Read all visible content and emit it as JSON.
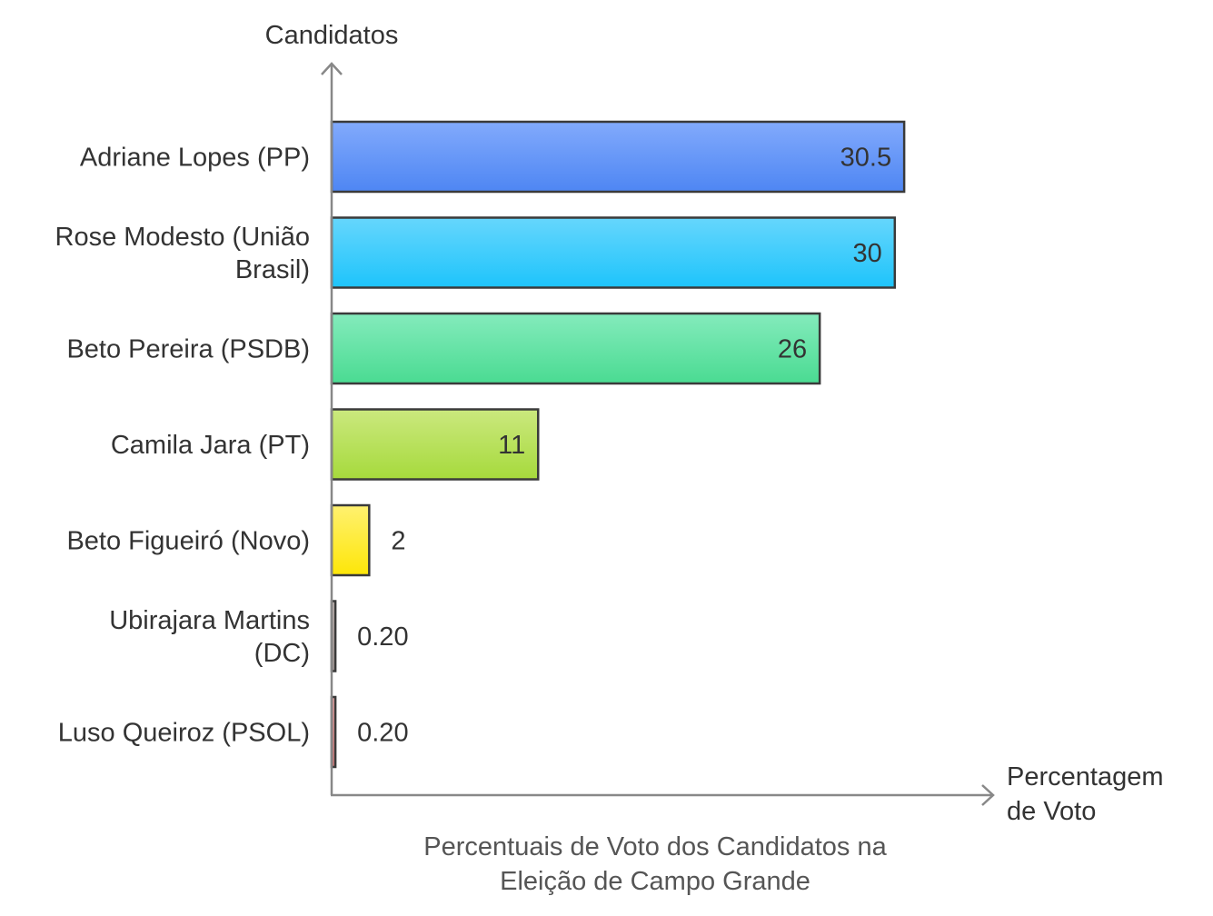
{
  "chart_data": {
    "type": "bar",
    "orientation": "horizontal",
    "categories": [
      "Adriane Lopes (PP)",
      "Rose Modesto (União Brasil)",
      "Beto Pereira (PSDB)",
      "Camila Jara (PT)",
      "Beto Figueiró (Novo)",
      "Ubirajara Martins (DC)",
      "Luso Queiroz (PSOL)"
    ],
    "values": [
      30.5,
      30,
      26,
      11,
      2,
      0.2,
      0.2
    ],
    "value_labels": [
      "30.5",
      "30",
      "26",
      "11",
      "2",
      "0.20",
      "0.20"
    ],
    "title": "Percentuais de Voto dos Candidatos na Eleição de Campo Grande",
    "xlabel": "Percentagem de Voto",
    "ylabel": "Candidatos",
    "xlim": [
      0,
      35
    ],
    "grid": false,
    "colors": [
      [
        "#82aafc",
        "#4e86f3"
      ],
      [
        "#66d6fc",
        "#1ec4fb"
      ],
      [
        "#84ebbc",
        "#4adb92"
      ],
      [
        "#cbe87e",
        "#a6da3c"
      ],
      [
        "#fff170",
        "#fde608"
      ],
      [
        "#c8bbb8",
        "#a89c99"
      ],
      [
        "#e8a4a4",
        "#d07a7a"
      ]
    ]
  }
}
